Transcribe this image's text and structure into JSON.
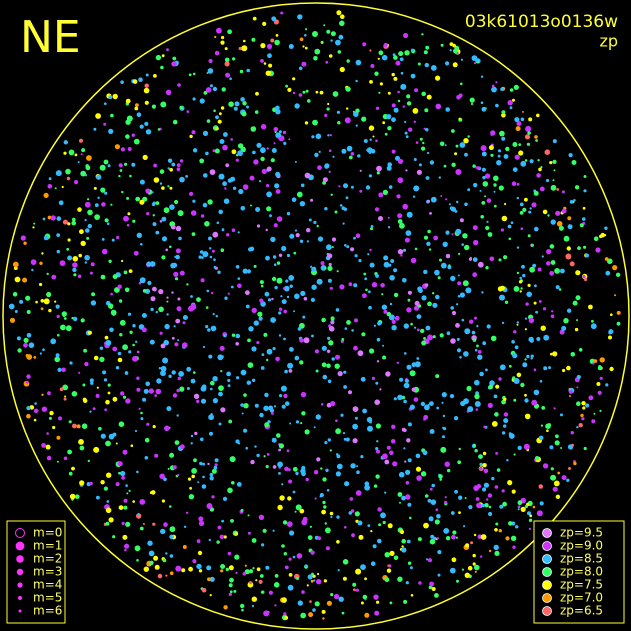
{
  "header": {
    "direction": "NE",
    "frame": "03k61013o0136w",
    "quantity": "zp"
  },
  "magnitude_legend": {
    "items": [
      "m=0",
      "m=1",
      "m=2",
      "m=3",
      "m=4",
      "m=5",
      "m=6"
    ],
    "color": "#ff33ff"
  },
  "zp_legend": {
    "items": [
      {
        "label": "zp=9.5",
        "color": "#dd77ff"
      },
      {
        "label": "zp=9.0",
        "color": "#cc33ff"
      },
      {
        "label": "zp=8.5",
        "color": "#33bbff"
      },
      {
        "label": "zp=8.0",
        "color": "#33ff66"
      },
      {
        "label": "zp=7.5",
        "color": "#ffff00"
      },
      {
        "label": "zp=7.0",
        "color": "#ff9900"
      },
      {
        "label": "zp=6.5",
        "color": "#ff6666"
      }
    ]
  }
}
